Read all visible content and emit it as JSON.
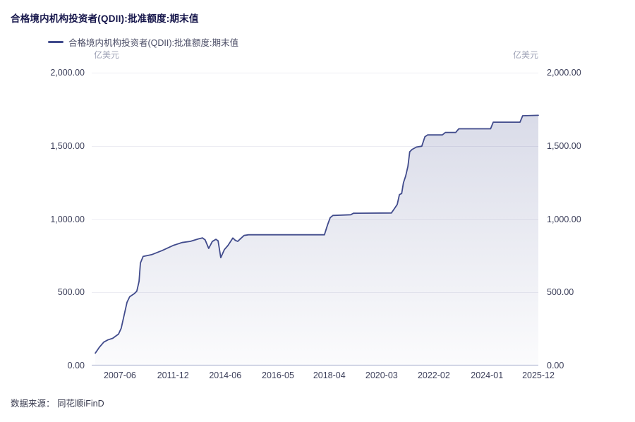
{
  "page": {
    "title": "合格境内机构投资者(QDII):批准额度:期末值",
    "source_note": "数据来源： 同花顺iFinD"
  },
  "colors": {
    "line": "#414b8c",
    "area_top": "rgba(65,75,140,0.20)",
    "area_bottom": "rgba(65,75,140,0.02)",
    "gridline": "#ededf3",
    "axis_line": "#b9bed6",
    "tick_label": "#3c3f5a",
    "unit_label": "#9ca0b4",
    "title": "#15154a"
  },
  "chart_data": {
    "type": "area",
    "title": "合格境内机构投资者(QDII):批准额度:期末值",
    "legend": [
      {
        "label": "合格境内机构投资者(QDII):批准额度:期末值"
      }
    ],
    "legend_position": "top-left",
    "unit": "亿美元",
    "ylabel_left": "亿美元",
    "ylabel_right": "亿美元",
    "ylim": [
      0,
      2000
    ],
    "grid": true,
    "y_ticks": [
      {
        "v": 0,
        "label": "0.00"
      },
      {
        "v": 500,
        "label": "500.00"
      },
      {
        "v": 1000,
        "label": "1,000.00"
      },
      {
        "v": 1500,
        "label": "1,500.00"
      },
      {
        "v": 2000,
        "label": "2,000.00"
      }
    ],
    "x_ticks": [
      {
        "pos": 0.063,
        "label": "2007-06"
      },
      {
        "pos": 0.182,
        "label": "2011-12"
      },
      {
        "pos": 0.299,
        "label": "2014-06"
      },
      {
        "pos": 0.417,
        "label": "2016-05"
      },
      {
        "pos": 0.532,
        "label": "2018-04"
      },
      {
        "pos": 0.649,
        "label": "2020-03"
      },
      {
        "pos": 0.766,
        "label": "2022-02"
      },
      {
        "pos": 0.885,
        "label": "2024-01"
      },
      {
        "pos": 1.0,
        "label": "2025-12"
      }
    ],
    "x_axis_note": "pos = fraction of x-axis from 2007 to 2025-12",
    "series": [
      {
        "name": "合格境内机构投资者(QDII):批准额度:期末值",
        "unit": "亿美元",
        "points": [
          [
            0.008,
            85
          ],
          [
            0.017,
            125
          ],
          [
            0.027,
            160
          ],
          [
            0.036,
            175
          ],
          [
            0.047,
            186
          ],
          [
            0.06,
            215
          ],
          [
            0.066,
            255
          ],
          [
            0.073,
            350
          ],
          [
            0.079,
            432
          ],
          [
            0.085,
            470
          ],
          [
            0.095,
            490
          ],
          [
            0.101,
            508
          ],
          [
            0.106,
            575
          ],
          [
            0.109,
            700
          ],
          [
            0.115,
            745
          ],
          [
            0.134,
            757
          ],
          [
            0.158,
            786
          ],
          [
            0.182,
            820
          ],
          [
            0.202,
            840
          ],
          [
            0.221,
            848
          ],
          [
            0.239,
            865
          ],
          [
            0.248,
            872
          ],
          [
            0.254,
            858
          ],
          [
            0.262,
            800
          ],
          [
            0.27,
            847
          ],
          [
            0.278,
            862
          ],
          [
            0.283,
            852
          ],
          [
            0.289,
            737
          ],
          [
            0.297,
            792
          ],
          [
            0.305,
            820
          ],
          [
            0.316,
            871
          ],
          [
            0.322,
            854
          ],
          [
            0.327,
            848
          ],
          [
            0.333,
            866
          ],
          [
            0.341,
            888
          ],
          [
            0.351,
            893
          ],
          [
            0.521,
            893
          ],
          [
            0.528,
            960
          ],
          [
            0.534,
            1010
          ],
          [
            0.54,
            1025
          ],
          [
            0.58,
            1030
          ],
          [
            0.586,
            1040
          ],
          [
            0.671,
            1042
          ],
          [
            0.678,
            1073
          ],
          [
            0.684,
            1100
          ],
          [
            0.689,
            1167
          ],
          [
            0.694,
            1175
          ],
          [
            0.698,
            1248
          ],
          [
            0.703,
            1295
          ],
          [
            0.708,
            1362
          ],
          [
            0.712,
            1460
          ],
          [
            0.717,
            1475
          ],
          [
            0.727,
            1492
          ],
          [
            0.739,
            1498
          ],
          [
            0.746,
            1562
          ],
          [
            0.752,
            1575
          ],
          [
            0.785,
            1575
          ],
          [
            0.792,
            1592
          ],
          [
            0.815,
            1592
          ],
          [
            0.822,
            1617
          ],
          [
            0.893,
            1617
          ],
          [
            0.899,
            1662
          ],
          [
            0.959,
            1662
          ],
          [
            0.965,
            1706
          ],
          [
            1.0,
            1709
          ]
        ],
        "last_value": 1709
      }
    ]
  }
}
